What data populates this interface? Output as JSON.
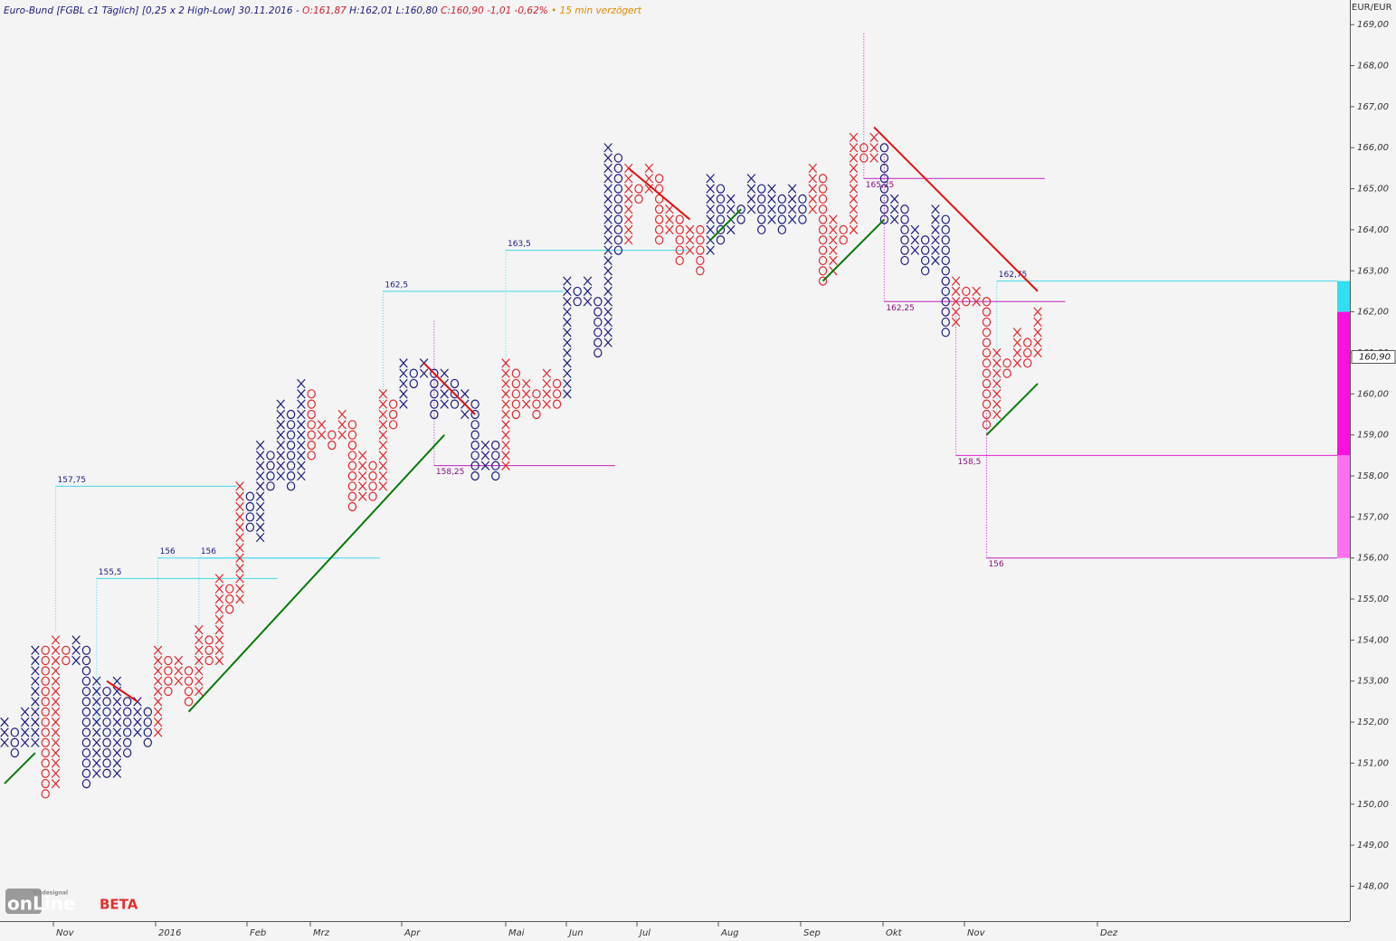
{
  "header": {
    "parts": [
      {
        "text": "Euro-Bund [FGBL c1 Täglich] [0,25 x 2 High-Low] 30.11.2016 - ",
        "color": "#1c1c80"
      },
      {
        "text": "O:161,87 ",
        "color": "#d0202a"
      },
      {
        "text": "H:162,01 L:160,80 ",
        "color": "#1c1c80"
      },
      {
        "text": "C:160,90 -1,01 -0,62%",
        "color": "#d0202a"
      },
      {
        "text": " • 15 min verzögert",
        "color": "#e08a00"
      }
    ]
  },
  "logo": {
    "brand": "Tradesignal",
    "name": "onLine",
    "tag": "BETA"
  },
  "chart_data": {
    "type": "point-figure",
    "unit": "EUR/EUR",
    "box_size": 0.25,
    "ylim": [
      147.15,
      169.6
    ],
    "yticks": [
      {
        "value": 148,
        "label": "148,00"
      },
      {
        "value": 149,
        "label": "149,00"
      },
      {
        "value": 150,
        "label": "150,00"
      },
      {
        "value": 151,
        "label": "151,00"
      },
      {
        "value": 152,
        "label": "152,00"
      },
      {
        "value": 153,
        "label": "153,00"
      },
      {
        "value": 154,
        "label": "154,00"
      },
      {
        "value": 155,
        "label": "155,00"
      },
      {
        "value": 156,
        "label": "156,00"
      },
      {
        "value": 157,
        "label": "157,00"
      },
      {
        "value": 158,
        "label": "158,00"
      },
      {
        "value": 159,
        "label": "159,00"
      },
      {
        "value": 160,
        "label": "160,00"
      },
      {
        "value": 161,
        "label": "161,00"
      },
      {
        "value": 162,
        "label": "162,00"
      },
      {
        "value": 163,
        "label": "163,00"
      },
      {
        "value": 164,
        "label": "164,00"
      },
      {
        "value": 165,
        "label": "165,00"
      },
      {
        "value": 166,
        "label": "166,00"
      },
      {
        "value": 167,
        "label": "167,00"
      },
      {
        "value": 168,
        "label": "168,00"
      },
      {
        "value": 169,
        "label": "169,00"
      }
    ],
    "last": {
      "value": 160.9,
      "label": "160,90"
    },
    "months": [
      "Nov",
      "2016",
      "Feb",
      "Mrz",
      "Apr",
      "Mai",
      "Jun",
      "Jul",
      "Aug",
      "Sep",
      "Okt",
      "Nov",
      "Dez"
    ],
    "colors": {
      "navy": "#1c1c80",
      "red": "#e3262b",
      "up": "#0a7a0a",
      "down": "#e01010"
    },
    "columns": [
      {
        "kind": "X",
        "color": "navy",
        "low": 151.5,
        "high": 152
      },
      {
        "kind": "O",
        "color": "navy",
        "low": 151.25,
        "high": 151.75
      },
      {
        "kind": "X",
        "color": "navy",
        "low": 151.5,
        "high": 152.25
      },
      {
        "kind": "X",
        "color": "navy",
        "low": 151.5,
        "high": 153.75
      },
      {
        "kind": "O",
        "color": "red",
        "low": 150.25,
        "high": 153.75
      },
      {
        "kind": "X",
        "color": "red",
        "low": 150.5,
        "high": 154
      },
      {
        "kind": "O",
        "color": "red",
        "low": 153.5,
        "high": 153.75
      },
      {
        "kind": "X",
        "color": "navy",
        "low": 153.5,
        "high": 154
      },
      {
        "kind": "O",
        "color": "navy",
        "low": 150.5,
        "high": 153.75
      },
      {
        "kind": "X",
        "color": "navy",
        "low": 150.75,
        "high": 153
      },
      {
        "kind": "O",
        "color": "navy",
        "low": 150.75,
        "high": 152.75
      },
      {
        "kind": "X",
        "color": "navy",
        "low": 150.75,
        "high": 153
      },
      {
        "kind": "O",
        "color": "navy",
        "low": 151.25,
        "high": 152.5
      },
      {
        "kind": "X",
        "color": "navy",
        "low": 151.75,
        "high": 152.5
      },
      {
        "kind": "O",
        "color": "navy",
        "low": 151.5,
        "high": 152.25
      },
      {
        "kind": "X",
        "color": "red",
        "low": 151.75,
        "high": 153.75
      },
      {
        "kind": "O",
        "color": "red",
        "low": 152.75,
        "high": 153.5
      },
      {
        "kind": "X",
        "color": "red",
        "low": 153,
        "high": 153.5
      },
      {
        "kind": "O",
        "color": "red",
        "low": 152.5,
        "high": 153.25
      },
      {
        "kind": "X",
        "color": "red",
        "low": 152.75,
        "high": 154.25
      },
      {
        "kind": "O",
        "color": "red",
        "low": 153.5,
        "high": 154
      },
      {
        "kind": "X",
        "color": "red",
        "low": 153.5,
        "high": 155.5
      },
      {
        "kind": "O",
        "color": "red",
        "low": 154.75,
        "high": 155.25
      },
      {
        "kind": "X",
        "color": "red",
        "low": 155,
        "high": 157.75
      },
      {
        "kind": "O",
        "color": "navy",
        "low": 156.75,
        "high": 157.5
      },
      {
        "kind": "X",
        "color": "navy",
        "low": 156.5,
        "high": 158.75
      },
      {
        "kind": "O",
        "color": "navy",
        "low": 157.75,
        "high": 158.5
      },
      {
        "kind": "X",
        "color": "navy",
        "low": 158,
        "high": 159.75
      },
      {
        "kind": "O",
        "color": "navy",
        "low": 157.75,
        "high": 159.5
      },
      {
        "kind": "X",
        "color": "navy",
        "low": 158,
        "high": 160.25
      },
      {
        "kind": "O",
        "color": "red",
        "low": 158.5,
        "high": 160
      },
      {
        "kind": "X",
        "color": "red",
        "low": 159,
        "high": 159.25
      },
      {
        "kind": "O",
        "color": "red",
        "low": 158.75,
        "high": 159
      },
      {
        "kind": "X",
        "color": "red",
        "low": 159,
        "high": 159.5
      },
      {
        "kind": "O",
        "color": "red",
        "low": 157.25,
        "high": 159.25
      },
      {
        "kind": "X",
        "color": "red",
        "low": 157.5,
        "high": 158.5
      },
      {
        "kind": "O",
        "color": "red",
        "low": 157.5,
        "high": 158.25
      },
      {
        "kind": "X",
        "color": "red",
        "low": 157.75,
        "high": 160
      },
      {
        "kind": "O",
        "color": "red",
        "low": 159.25,
        "high": 159.75
      },
      {
        "kind": "X",
        "color": "navy",
        "low": 159.75,
        "high": 160.75
      },
      {
        "kind": "O",
        "color": "navy",
        "low": 160.25,
        "high": 160.5
      },
      {
        "kind": "X",
        "color": "navy",
        "low": 160.5,
        "high": 160.75
      },
      {
        "kind": "O",
        "color": "navy",
        "low": 159.5,
        "high": 160.5
      },
      {
        "kind": "X",
        "color": "navy",
        "low": 159.75,
        "high": 160.5
      },
      {
        "kind": "O",
        "color": "navy",
        "low": 159.75,
        "high": 160.25
      },
      {
        "kind": "X",
        "color": "navy",
        "low": 159.5,
        "high": 160
      },
      {
        "kind": "O",
        "color": "navy",
        "low": 158,
        "high": 159.75
      },
      {
        "kind": "X",
        "color": "navy",
        "low": 158.25,
        "high": 158.75
      },
      {
        "kind": "O",
        "color": "navy",
        "low": 158,
        "high": 158.75
      },
      {
        "kind": "X",
        "color": "red",
        "low": 158.25,
        "high": 160.75
      },
      {
        "kind": "O",
        "color": "red",
        "low": 159.5,
        "high": 160.5
      },
      {
        "kind": "X",
        "color": "red",
        "low": 159.75,
        "high": 160.25
      },
      {
        "kind": "O",
        "color": "red",
        "low": 159.5,
        "high": 160
      },
      {
        "kind": "X",
        "color": "red",
        "low": 159.75,
        "high": 160.5
      },
      {
        "kind": "O",
        "color": "red",
        "low": 159.75,
        "high": 160.25
      },
      {
        "kind": "X",
        "color": "navy",
        "low": 160,
        "high": 162.75
      },
      {
        "kind": "O",
        "color": "navy",
        "low": 162.25,
        "high": 162.5
      },
      {
        "kind": "X",
        "color": "navy",
        "low": 162.25,
        "high": 162.75
      },
      {
        "kind": "O",
        "color": "navy",
        "low": 161,
        "high": 162.25
      },
      {
        "kind": "X",
        "color": "navy",
        "low": 161.25,
        "high": 166
      },
      {
        "kind": "O",
        "color": "navy",
        "low": 163.5,
        "high": 165.75
      },
      {
        "kind": "X",
        "color": "red",
        "low": 163.75,
        "high": 165.5
      },
      {
        "kind": "O",
        "color": "red",
        "low": 164.75,
        "high": 165
      },
      {
        "kind": "X",
        "color": "red",
        "low": 165,
        "high": 165.5
      },
      {
        "kind": "O",
        "color": "red",
        "low": 163.75,
        "high": 165.25
      },
      {
        "kind": "X",
        "color": "red",
        "low": 164,
        "high": 164.5
      },
      {
        "kind": "O",
        "color": "red",
        "low": 163.25,
        "high": 164.25
      },
      {
        "kind": "X",
        "color": "red",
        "low": 163.5,
        "high": 164
      },
      {
        "kind": "O",
        "color": "red",
        "low": 163,
        "high": 164
      },
      {
        "kind": "X",
        "color": "navy",
        "low": 163.5,
        "high": 165.25
      },
      {
        "kind": "O",
        "color": "navy",
        "low": 163.75,
        "high": 165
      },
      {
        "kind": "X",
        "color": "navy",
        "low": 164,
        "high": 164.75
      },
      {
        "kind": "O",
        "color": "navy",
        "low": 164.25,
        "high": 164.5
      },
      {
        "kind": "X",
        "color": "navy",
        "low": 164.5,
        "high": 165.25
      },
      {
        "kind": "O",
        "color": "navy",
        "low": 164,
        "high": 165
      },
      {
        "kind": "X",
        "color": "navy",
        "low": 164.25,
        "high": 165
      },
      {
        "kind": "O",
        "color": "navy",
        "low": 164,
        "high": 164.75
      },
      {
        "kind": "X",
        "color": "navy",
        "low": 164.25,
        "high": 165
      },
      {
        "kind": "O",
        "color": "navy",
        "low": 164.25,
        "high": 164.75
      },
      {
        "kind": "X",
        "color": "red",
        "low": 164.5,
        "high": 165.5
      },
      {
        "kind": "O",
        "color": "red",
        "low": 162.75,
        "high": 165.25
      },
      {
        "kind": "X",
        "color": "red",
        "low": 163,
        "high": 164.25
      },
      {
        "kind": "O",
        "color": "red",
        "low": 163.75,
        "high": 164
      },
      {
        "kind": "X",
        "color": "red",
        "low": 164,
        "high": 166.25
      },
      {
        "kind": "O",
        "color": "red",
        "low": 165.75,
        "high": 166
      },
      {
        "kind": "X",
        "color": "red",
        "low": 165.75,
        "high": 166.25
      },
      {
        "kind": "O",
        "color": "navy",
        "low": 164.25,
        "high": 166
      },
      {
        "kind": "X",
        "color": "navy",
        "low": 164.25,
        "high": 164.75
      },
      {
        "kind": "O",
        "color": "navy",
        "low": 163.25,
        "high": 164.5
      },
      {
        "kind": "X",
        "color": "navy",
        "low": 163.5,
        "high": 164
      },
      {
        "kind": "O",
        "color": "navy",
        "low": 163,
        "high": 163.75
      },
      {
        "kind": "X",
        "color": "navy",
        "low": 163.25,
        "high": 164.5
      },
      {
        "kind": "O",
        "color": "navy",
        "low": 161.5,
        "high": 164.25
      },
      {
        "kind": "X",
        "color": "red",
        "low": 161.75,
        "high": 162.75
      },
      {
        "kind": "O",
        "color": "red",
        "low": 162.25,
        "high": 162.5
      },
      {
        "kind": "X",
        "color": "red",
        "low": 162.25,
        "high": 162.5
      },
      {
        "kind": "O",
        "color": "red",
        "low": 159.25,
        "high": 162.25
      },
      {
        "kind": "X",
        "color": "red",
        "low": 159.5,
        "high": 161
      },
      {
        "kind": "O",
        "color": "red",
        "low": 160.5,
        "high": 160.75
      },
      {
        "kind": "X",
        "color": "red",
        "low": 160.75,
        "high": 161.5
      },
      {
        "kind": "O",
        "color": "red",
        "low": 160.75,
        "high": 161.25
      },
      {
        "kind": "X",
        "color": "red",
        "low": 161,
        "high": 162
      }
    ],
    "trendlines": [
      {
        "color": "up",
        "from_column": 0,
        "from": 150.5,
        "to_column": 3,
        "to": 151.25
      },
      {
        "color": "down",
        "from_column": 10,
        "from": 153,
        "to_column": 13,
        "to": 152.5
      },
      {
        "color": "up",
        "from_column": 18,
        "from": 152.25,
        "to_column": 43,
        "to": 159
      },
      {
        "color": "down",
        "from_column": 41,
        "from": 160.75,
        "to_column": 46,
        "to": 159.5
      },
      {
        "color": "down",
        "from_column": 61,
        "from": 165.5,
        "to_column": 67,
        "to": 164.25
      },
      {
        "color": "up",
        "from_column": 69,
        "from": 163.75,
        "to_column": 72,
        "to": 164.5
      },
      {
        "color": "up",
        "from_column": 80,
        "from": 162.75,
        "to_column": 86,
        "to": 164.25
      },
      {
        "color": "down",
        "from_column": 85,
        "from": 166.5,
        "to_column": 101,
        "to": 162.5
      },
      {
        "color": "up",
        "from_column": 96,
        "from": 159,
        "to_column": 101,
        "to": 160.25
      }
    ],
    "levels": [
      {
        "column": 5,
        "value": 157.75,
        "label": "157,75",
        "color": "#40d8e8"
      },
      {
        "column": 9,
        "value": 155.5,
        "label": "155,5",
        "color": "#40d8e8"
      },
      {
        "column": 15,
        "value": 156,
        "label": "156",
        "color": "#40d8e8"
      },
      {
        "column": 19,
        "value": 156,
        "label": "156",
        "color": "#40d8e8"
      },
      {
        "column": 37,
        "value": 162.5,
        "label": "162,5",
        "color": "#40d8e8"
      },
      {
        "column": 49,
        "value": 163.5,
        "label": "163,5",
        "color": "#40d8e8"
      },
      {
        "column": 42,
        "value": 158.25,
        "label": "158,25",
        "color": "#c020c0"
      },
      {
        "column": 84,
        "value": 165.25,
        "label": "165,25",
        "color": "#c020c0"
      },
      {
        "column": 86,
        "value": 162.25,
        "label": "162,25",
        "color": "#c020c0"
      },
      {
        "column": 93,
        "value": 158.5,
        "label": "158,5",
        "color": "#e020d0"
      },
      {
        "column": 96,
        "value": 156,
        "label": "156",
        "color": "#c020c0"
      },
      {
        "column": 97,
        "value": 162.75,
        "label": "162,75",
        "color": "#40d8e8"
      }
    ],
    "range_bar": [
      {
        "from": 162.75,
        "to": 162,
        "color": "#30e0f0"
      },
      {
        "from": 162,
        "to": 158.5,
        "color": "#ff10e0"
      },
      {
        "from": 158.5,
        "to": 156,
        "color": "#ff70ee"
      }
    ]
  }
}
